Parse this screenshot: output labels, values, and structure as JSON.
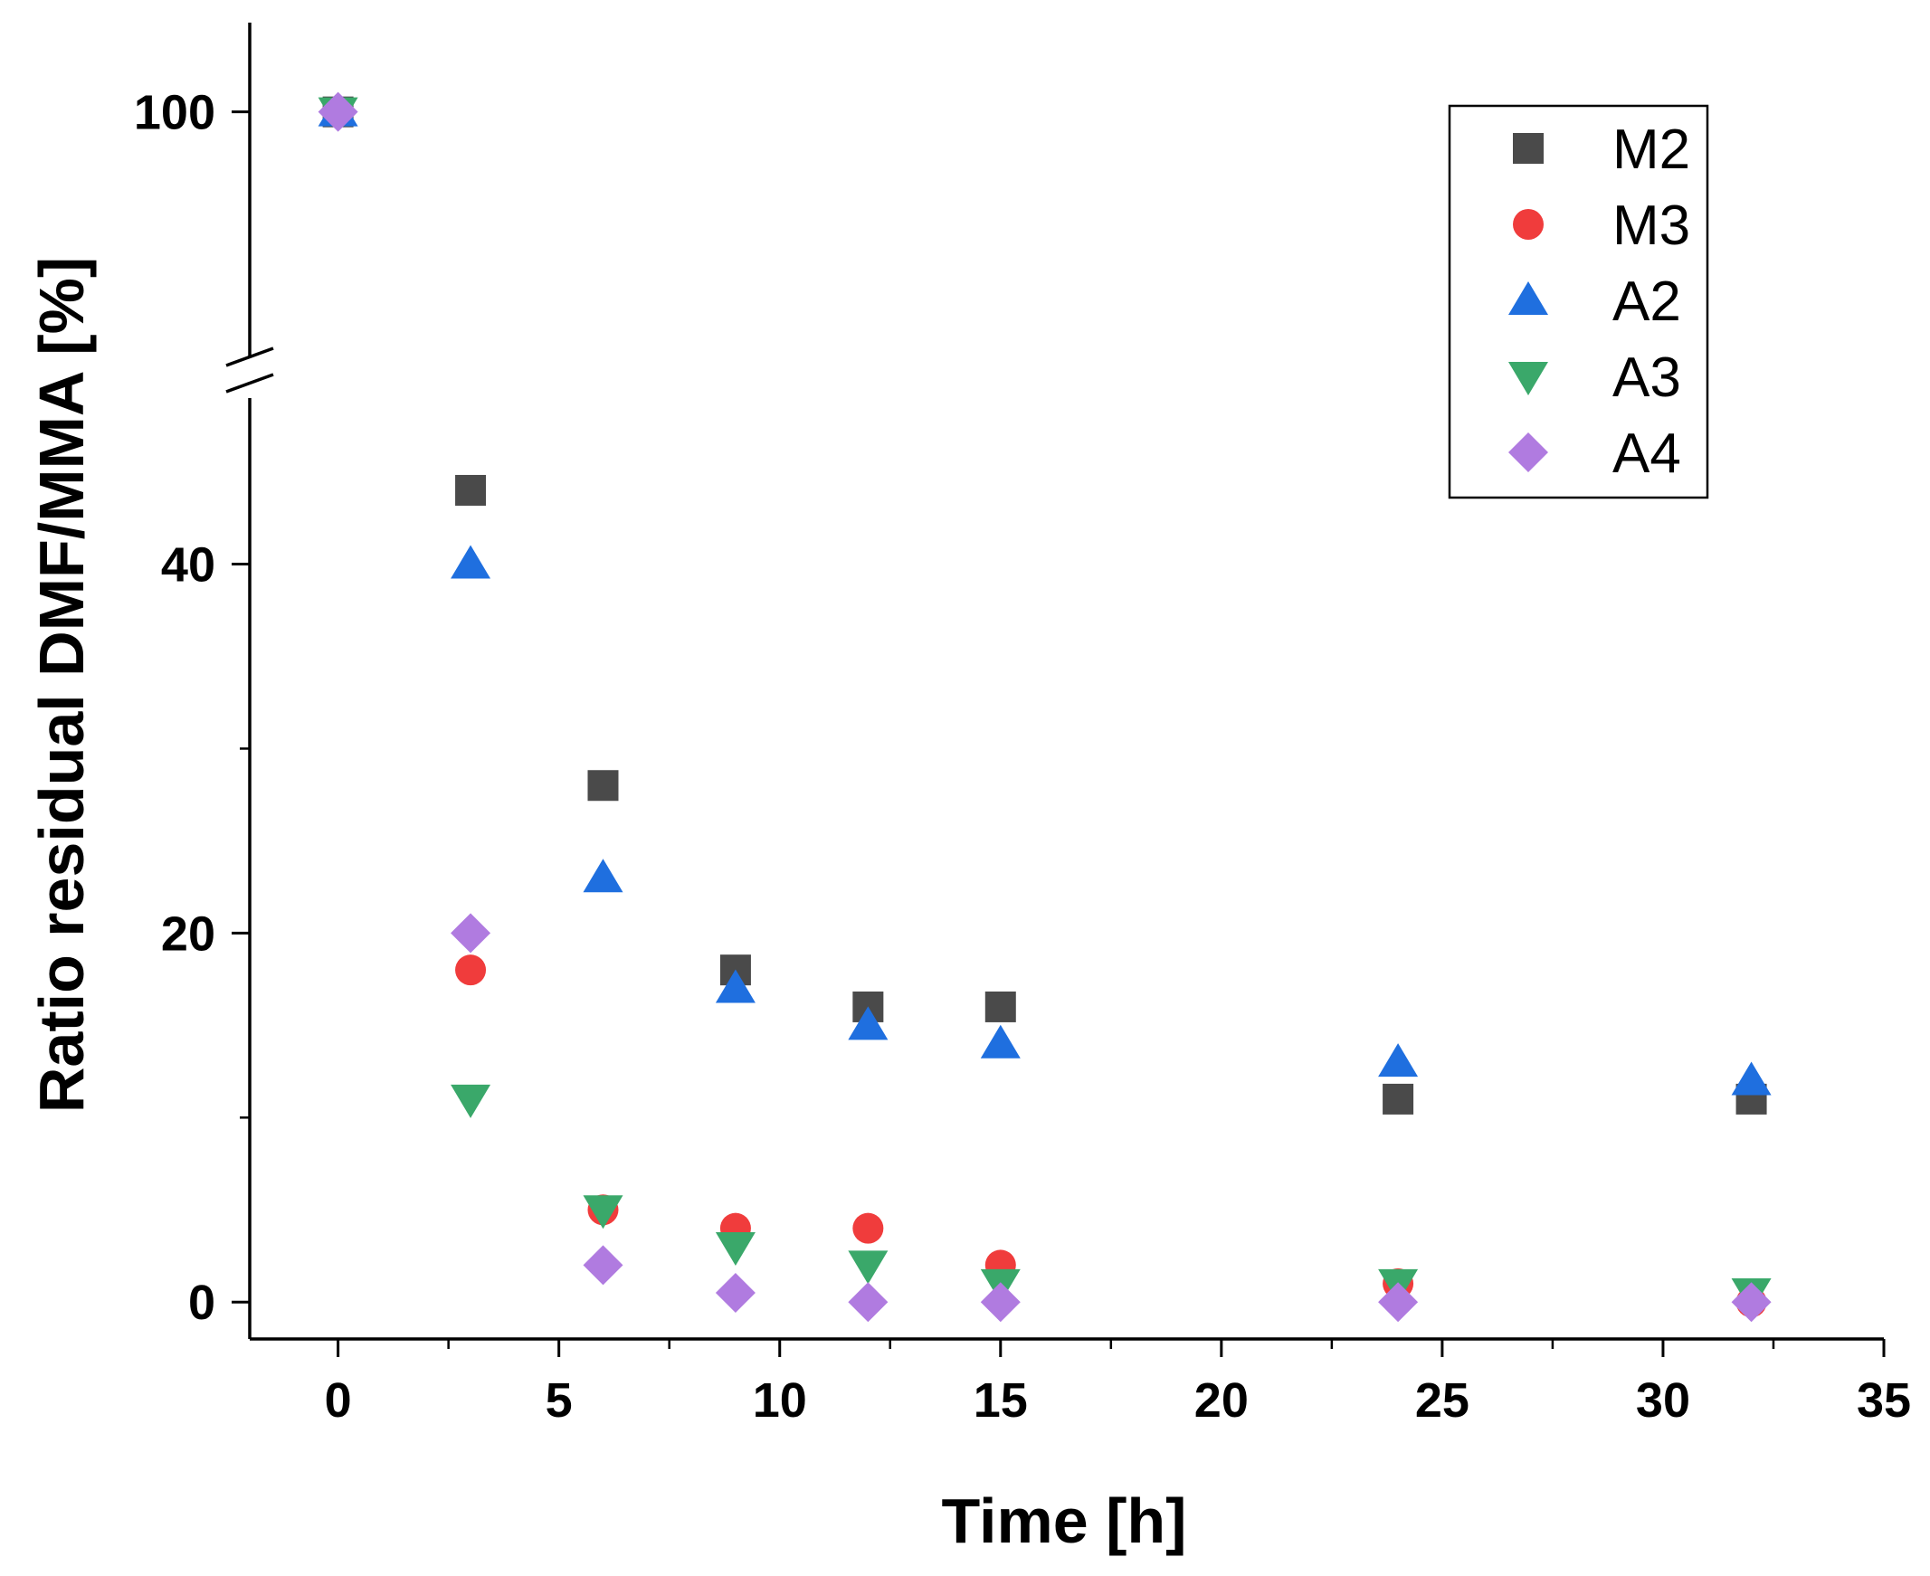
{
  "chart_data": {
    "type": "scatter",
    "title": "",
    "xlabel": "Time [h]",
    "ylabel": "Ratio residual DMF/MMA [%]",
    "xlim": [
      -2,
      35
    ],
    "xticks": [
      0,
      5,
      10,
      15,
      20,
      25,
      30,
      35
    ],
    "xtick_labels": [
      "0",
      "5",
      "10",
      "15",
      "20",
      "25",
      "30",
      "35"
    ],
    "ylim_lower": [
      -2,
      49
    ],
    "ylim_upper": [
      78,
      108
    ],
    "axis_break": true,
    "yticks": [
      0,
      20,
      40,
      100
    ],
    "ytick_labels": [
      "0",
      "20",
      "40",
      "100"
    ],
    "legend_position": "top-right",
    "x": [
      0,
      3,
      6,
      9,
      12,
      15,
      24,
      32
    ],
    "series": [
      {
        "name": "M2",
        "marker": "square",
        "color": "#4a4a4a",
        "values": [
          100,
          44,
          28,
          18,
          16,
          16,
          11,
          11
        ]
      },
      {
        "name": "M3",
        "marker": "circle",
        "color": "#f03c3c",
        "values": [
          100,
          18,
          5,
          4,
          4,
          2,
          1,
          0
        ]
      },
      {
        "name": "A2",
        "marker": "triangle-up",
        "color": "#1f6fdf",
        "values": [
          100,
          40,
          23,
          17,
          15,
          14,
          13,
          12
        ]
      },
      {
        "name": "A3",
        "marker": "triangle-down",
        "color": "#3aa86a",
        "values": [
          100,
          11,
          5,
          3,
          2,
          1,
          1,
          0.5
        ]
      },
      {
        "name": "A4",
        "marker": "diamond",
        "color": "#b07be0",
        "values": [
          100,
          20,
          2,
          0.5,
          0,
          0,
          0,
          0
        ]
      }
    ]
  }
}
